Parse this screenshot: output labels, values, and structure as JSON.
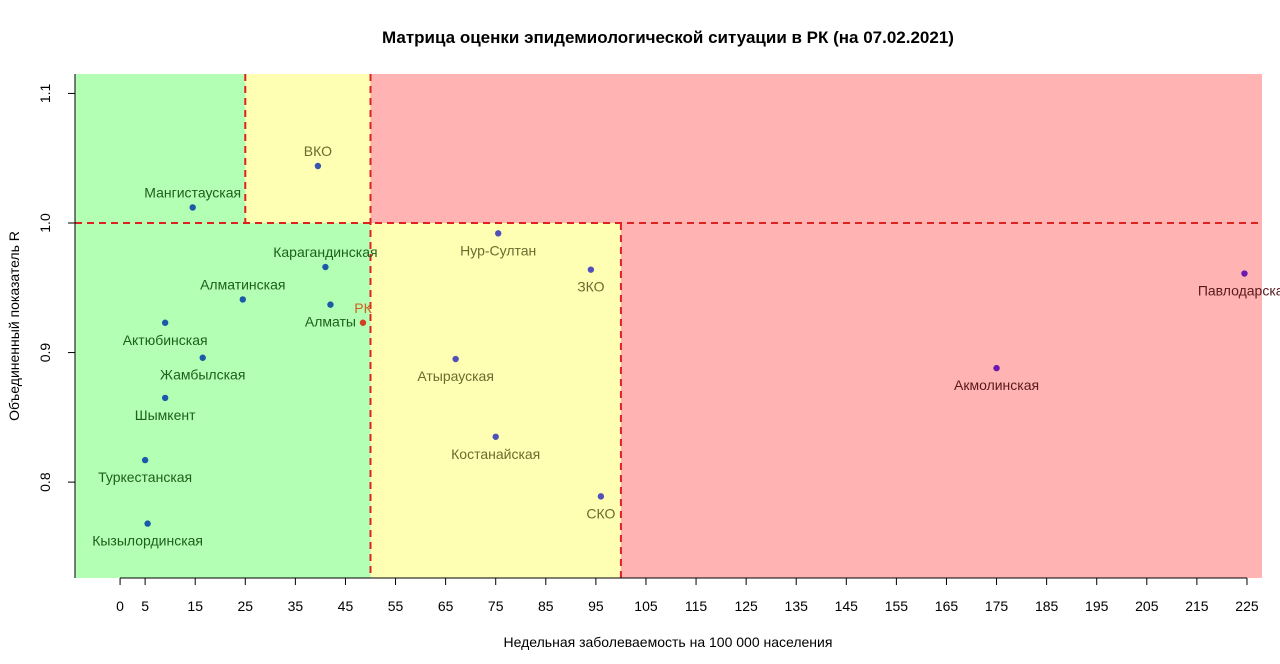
{
  "chart_data": {
    "type": "scatter",
    "title": "Матрица оценки эпидемиологической ситуации в РК (на 07.02.2021)",
    "xlabel": "Недельная заболеваемость на 100 000 населения",
    "ylabel": "Объединенный показатель R",
    "xlim": [
      -9,
      228
    ],
    "ylim": [
      0.726,
      1.115
    ],
    "x_ticks": [
      0,
      5,
      15,
      25,
      35,
      45,
      55,
      65,
      75,
      85,
      95,
      105,
      115,
      125,
      135,
      145,
      155,
      165,
      175,
      185,
      195,
      205,
      215,
      225
    ],
    "y_ticks": [
      0.8,
      0.9,
      1.0,
      1.1
    ],
    "y_tick_labels": [
      "0.8",
      "0.9",
      "1.0",
      "1.1"
    ],
    "zones": [
      {
        "x": [
          -9,
          25
        ],
        "y": [
          1.0,
          1.115
        ],
        "color": "#b3ffb3"
      },
      {
        "x": [
          25,
          50
        ],
        "y": [
          1.0,
          1.115
        ],
        "color": "#ffffb3"
      },
      {
        "x": [
          50,
          228
        ],
        "y": [
          1.0,
          1.115
        ],
        "color": "#ffb3b3"
      },
      {
        "x": [
          -9,
          50
        ],
        "y": [
          0.726,
          1.0
        ],
        "color": "#b3ffb3"
      },
      {
        "x": [
          50,
          100
        ],
        "y": [
          0.726,
          1.0
        ],
        "color": "#ffffb3"
      },
      {
        "x": [
          100,
          228
        ],
        "y": [
          0.726,
          1.0
        ],
        "color": "#ffb3b3"
      }
    ],
    "threshold_lines": [
      {
        "orientation": "h",
        "value": 1.0
      },
      {
        "orientation": "v",
        "value": 25,
        "y": [
          1.0,
          1.115
        ]
      },
      {
        "orientation": "v",
        "value": 50,
        "y": [
          0.726,
          1.115
        ]
      },
      {
        "orientation": "v",
        "value": 100,
        "y": [
          0.726,
          1.0
        ]
      }
    ],
    "threshold_color": "#dd2222",
    "points": [
      {
        "label": "ВКО",
        "x": 39.5,
        "y": 1.044,
        "color": "#3a55b0",
        "label_color": "#6b6b30",
        "label_pos": "above"
      },
      {
        "label": "Мангистауская",
        "x": 14.5,
        "y": 1.012,
        "color": "#1a5aa8",
        "label_color": "#1e5e1e",
        "label_pos": "above"
      },
      {
        "label": "Карагандинская",
        "x": 41,
        "y": 0.966,
        "color": "#1a5aa8",
        "label_color": "#1e5e1e",
        "label_pos": "above"
      },
      {
        "label": "Алматинская",
        "x": 24.5,
        "y": 0.941,
        "color": "#1a5aa8",
        "label_color": "#1e5e1e",
        "label_pos": "above"
      },
      {
        "label": "Алматы",
        "x": 42,
        "y": 0.937,
        "color": "#1a5aa8",
        "label_color": "#1e5e1e",
        "label_pos": "below"
      },
      {
        "label": "РК",
        "x": 48.5,
        "y": 0.923,
        "color": "#d04020",
        "label_color": "#d06020",
        "label_pos": "above"
      },
      {
        "label": "Актюбинская",
        "x": 9,
        "y": 0.923,
        "color": "#1a5aa8",
        "label_color": "#1e5e1e",
        "label_pos": "below"
      },
      {
        "label": "Жамбылская",
        "x": 16.5,
        "y": 0.896,
        "color": "#1a5aa8",
        "label_color": "#1e5e1e",
        "label_pos": "below"
      },
      {
        "label": "Шымкент",
        "x": 9,
        "y": 0.865,
        "color": "#1a5aa8",
        "label_color": "#1e5e1e",
        "label_pos": "below"
      },
      {
        "label": "Туркестанская",
        "x": 5,
        "y": 0.817,
        "color": "#1a5aa8",
        "label_color": "#1e5e1e",
        "label_pos": "below"
      },
      {
        "label": "Кызылординская",
        "x": 5.5,
        "y": 0.768,
        "color": "#1a5aa8",
        "label_color": "#1e5e1e",
        "label_pos": "below"
      },
      {
        "label": "Нур-Султан",
        "x": 75.5,
        "y": 0.992,
        "color": "#5050b8",
        "label_color": "#6b6b30",
        "label_pos": "below"
      },
      {
        "label": "ЗКО",
        "x": 94,
        "y": 0.964,
        "color": "#5050b8",
        "label_color": "#6b6b30",
        "label_pos": "below"
      },
      {
        "label": "Атырауская",
        "x": 67,
        "y": 0.895,
        "color": "#5050b8",
        "label_color": "#6b6b30",
        "label_pos": "below"
      },
      {
        "label": "Костанайская",
        "x": 75,
        "y": 0.835,
        "color": "#5050b8",
        "label_color": "#6b6b30",
        "label_pos": "below"
      },
      {
        "label": "СКО",
        "x": 96,
        "y": 0.789,
        "color": "#5050b8",
        "label_color": "#6b6b30",
        "label_pos": "below"
      },
      {
        "label": "Павлодарская",
        "x": 224.5,
        "y": 0.961,
        "color": "#6a1ab0",
        "label_color": "#5a1a1a",
        "label_pos": "below"
      },
      {
        "label": "Акмолинская",
        "x": 175,
        "y": 0.888,
        "color": "#6a1ab0",
        "label_color": "#5a1a1a",
        "label_pos": "below"
      }
    ]
  }
}
